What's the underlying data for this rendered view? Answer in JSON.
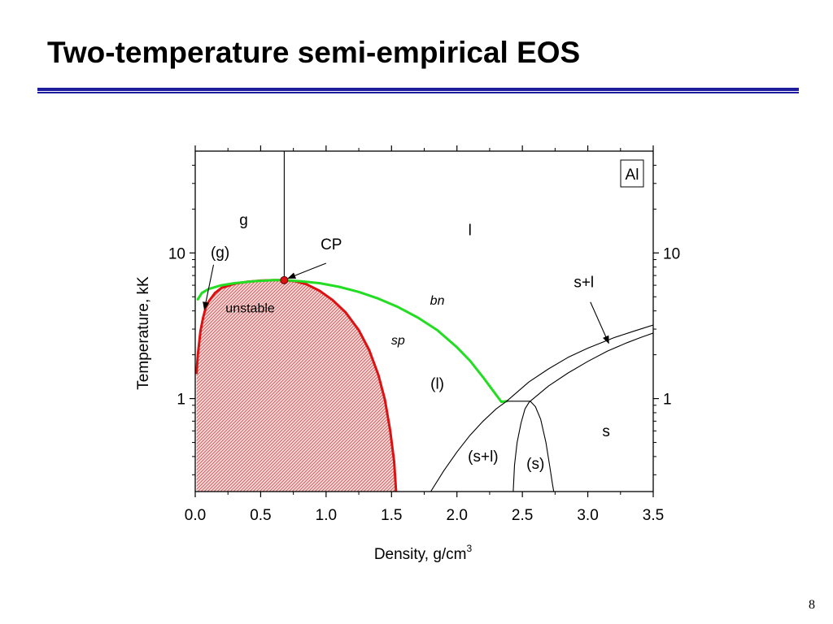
{
  "slide": {
    "title": "Two-temperature semi-empirical EOS",
    "page_number": "8"
  },
  "colors": {
    "title_rule": "#1c1c9c",
    "spinodal": "#dd1111",
    "binodal": "#22dd22",
    "unstable_fill": "#e88a8a",
    "critical_point": "#dd1111"
  },
  "chart_data": {
    "type": "line",
    "title": "",
    "xlabel": "Density, g/cm",
    "xlabel_superscript": "3",
    "ylabel": "Temperature, kK",
    "xlim": [
      0,
      3.5
    ],
    "ylim": [
      0.23,
      50
    ],
    "yscale": "log",
    "x_ticks": [
      0,
      0.5,
      1.0,
      1.5,
      2.0,
      2.5,
      3.0,
      3.5
    ],
    "x_tick_labels": [
      "0.0",
      "0.5",
      "1.0",
      "1.5",
      "2.0",
      "2.5",
      "3.0",
      "3.5"
    ],
    "y_ticks": [
      1,
      10
    ],
    "y_tick_labels": [
      "1",
      "10"
    ],
    "y_tick_labels_right": [
      "1",
      "10"
    ],
    "grid": false,
    "material_label": "Al",
    "critical_point": {
      "name": "CP",
      "x": 0.68,
      "y": 6.5
    },
    "series": [
      {
        "key": "spinodal",
        "style": "red-thick",
        "fill": true,
        "x": [
          0.01,
          0.02,
          0.04,
          0.06,
          0.08,
          0.1,
          0.15,
          0.2,
          0.3,
          0.4,
          0.5,
          0.6,
          0.68,
          0.76,
          0.85,
          0.95,
          1.05,
          1.15,
          1.25,
          1.33,
          1.4,
          1.45,
          1.49,
          1.52,
          1.53,
          1.535
        ],
        "y": [
          1.5,
          2.0,
          2.9,
          3.6,
          4.2,
          4.6,
          5.3,
          5.75,
          6.15,
          6.35,
          6.45,
          6.5,
          6.5,
          6.4,
          6.1,
          5.5,
          4.75,
          3.9,
          2.95,
          2.15,
          1.45,
          0.98,
          0.6,
          0.37,
          0.27,
          0.23
        ]
      },
      {
        "key": "binodal",
        "style": "green-thick",
        "label": "bn",
        "x": [
          0.02,
          0.05,
          0.1,
          0.2,
          0.3,
          0.45,
          0.6,
          0.68,
          0.8,
          0.95,
          1.1,
          1.25,
          1.4,
          1.55,
          1.7,
          1.85,
          2.0,
          2.1,
          2.2,
          2.28,
          2.34,
          2.38
        ],
        "y": [
          4.8,
          5.3,
          5.65,
          6.0,
          6.2,
          6.4,
          6.5,
          6.5,
          6.4,
          6.2,
          5.85,
          5.4,
          4.85,
          4.25,
          3.6,
          2.95,
          2.25,
          1.82,
          1.4,
          1.12,
          0.95,
          0.96
        ]
      },
      {
        "key": "critical_isochore",
        "style": "black-thin",
        "x": [
          0.68,
          0.68
        ],
        "y": [
          6.5,
          50
        ]
      },
      {
        "key": "melting_liquidus",
        "style": "black-thin",
        "x": [
          2.38,
          2.55,
          2.7,
          2.85,
          3.0,
          3.2,
          3.35,
          3.5
        ],
        "y": [
          0.96,
          1.3,
          1.6,
          1.92,
          2.22,
          2.62,
          2.9,
          3.2
        ]
      },
      {
        "key": "melting_solidus",
        "style": "black-thin",
        "x": [
          2.56,
          2.7,
          2.85,
          3.0,
          3.15,
          3.3,
          3.4,
          3.5
        ],
        "y": [
          0.96,
          1.22,
          1.5,
          1.8,
          2.12,
          2.42,
          2.62,
          2.82
        ]
      },
      {
        "key": "triple_line",
        "style": "black-thin",
        "x": [
          2.38,
          2.56
        ],
        "y": [
          0.96,
          0.96
        ]
      },
      {
        "key": "metastable_liquidus",
        "style": "black-thin",
        "x": [
          1.8,
          1.9,
          2.0,
          2.1,
          2.2,
          2.3,
          2.38
        ],
        "y": [
          0.23,
          0.32,
          0.43,
          0.56,
          0.7,
          0.85,
          0.96
        ]
      },
      {
        "key": "metastable_solidus_left",
        "style": "black-thin",
        "x": [
          2.43,
          2.44,
          2.46,
          2.49,
          2.52,
          2.55,
          2.56
        ],
        "y": [
          0.23,
          0.35,
          0.5,
          0.68,
          0.85,
          0.94,
          0.96
        ]
      },
      {
        "key": "metastable_solidus_right",
        "style": "black-thin",
        "x": [
          2.56,
          2.6,
          2.64,
          2.68,
          2.71,
          2.73,
          2.74
        ],
        "y": [
          0.96,
          0.88,
          0.72,
          0.5,
          0.34,
          0.26,
          0.23
        ]
      }
    ],
    "region_labels": [
      {
        "text": "g",
        "x": 0.37,
        "y": 15.5,
        "style": "normal",
        "size": 19
      },
      {
        "text": "(g)",
        "x": 0.19,
        "y": 9.3,
        "style": "normal",
        "size": 19
      },
      {
        "text": "CP",
        "x": 1.04,
        "y": 10.6,
        "style": "normal",
        "size": 19
      },
      {
        "text": "l",
        "x": 2.1,
        "y": 13.2,
        "style": "normal",
        "size": 19
      },
      {
        "text": "unstable",
        "x": 0.42,
        "y": 3.9,
        "style": "normal",
        "size": 16
      },
      {
        "text": "bn",
        "x": 1.85,
        "y": 4.4,
        "style": "italic",
        "size": 16
      },
      {
        "text": "sp",
        "x": 1.55,
        "y": 2.35,
        "style": "italic",
        "size": 16
      },
      {
        "text": "s+l",
        "x": 2.97,
        "y": 5.8,
        "style": "normal",
        "size": 19
      },
      {
        "text": "(l)",
        "x": 1.85,
        "y": 1.17,
        "style": "normal",
        "size": 19
      },
      {
        "text": "s",
        "x": 3.14,
        "y": 0.55,
        "style": "normal",
        "size": 19
      },
      {
        "text": "(s+l)",
        "x": 2.2,
        "y": 0.37,
        "style": "normal",
        "size": 19
      },
      {
        "text": "(s)",
        "x": 2.6,
        "y": 0.33,
        "style": "normal",
        "size": 19
      }
    ],
    "arrows": [
      {
        "from": [
          1.0,
          8.5
        ],
        "to": [
          0.71,
          6.7
        ]
      },
      {
        "from": [
          0.14,
          8.3
        ],
        "to": [
          0.07,
          4.1
        ]
      },
      {
        "from": [
          3.02,
          4.6
        ],
        "to": [
          3.16,
          2.4
        ]
      }
    ]
  }
}
